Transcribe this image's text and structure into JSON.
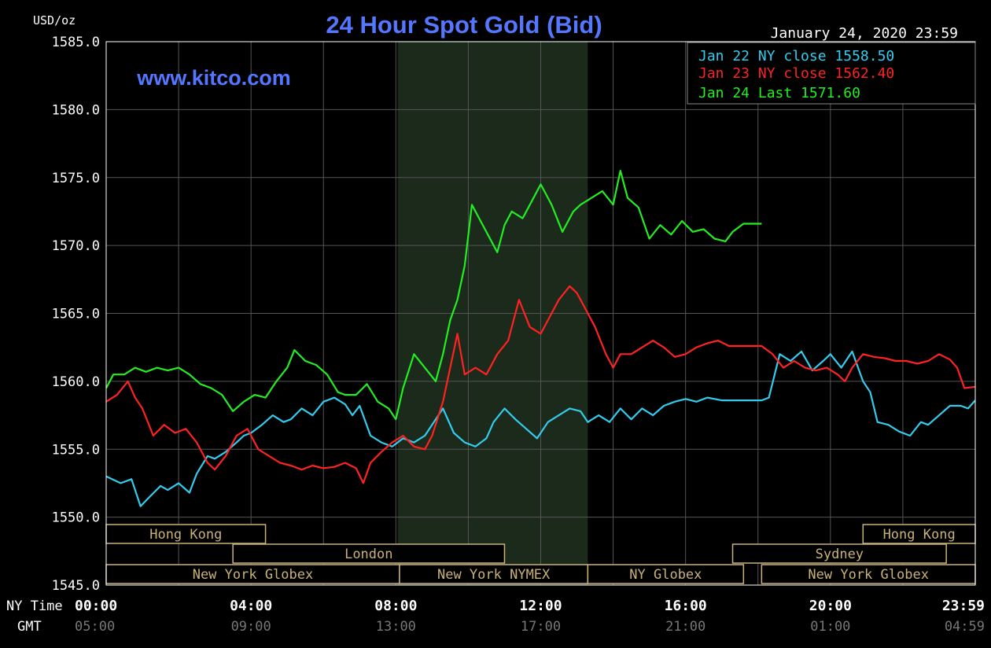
{
  "chart_data": {
    "type": "line",
    "title": "24 Hour Spot Gold (Bid)",
    "site": "www.kitco.com",
    "timestamp": "January 24, 2020 23:59",
    "ylabel": "USD/oz",
    "ylim": [
      1545,
      1585
    ],
    "yticks": [
      "1585.0",
      "1580.0",
      "1575.0",
      "1570.0",
      "1565.0",
      "1560.0",
      "1555.0",
      "1550.0",
      "1545.0"
    ],
    "xlim": [
      0,
      24
    ],
    "x_row_labels": [
      "NY Time",
      "GMT"
    ],
    "ny_ticks": [
      "00:00",
      "04:00",
      "08:00",
      "12:00",
      "16:00",
      "20:00",
      "23:59"
    ],
    "gmt_ticks": [
      "05:00",
      "09:00",
      "13:00",
      "17:00",
      "21:00",
      "01:00",
      "04:59"
    ],
    "shaded_region": [
      8.05,
      13.3
    ],
    "grid": true,
    "legend_position": "top-right",
    "series": [
      {
        "name": "Jan 22 NY close 1558.50",
        "color": "#33ccee",
        "x": [
          0,
          0.4,
          0.7,
          0.95,
          1.2,
          1.5,
          1.7,
          2.0,
          2.3,
          2.5,
          2.8,
          3.0,
          3.3,
          3.6,
          3.8,
          4.0,
          4.3,
          4.6,
          4.9,
          5.1,
          5.4,
          5.7,
          6.0,
          6.3,
          6.6,
          6.8,
          7.0,
          7.3,
          7.6,
          7.9,
          8.2,
          8.5,
          8.8,
          9.1,
          9.3,
          9.6,
          9.9,
          10.2,
          10.5,
          10.7,
          11.0,
          11.3,
          11.6,
          11.9,
          12.2,
          12.5,
          12.8,
          13.1,
          13.3,
          13.6,
          13.9,
          14.2,
          14.5,
          14.8,
          15.1,
          15.4,
          15.7,
          16.0,
          16.3,
          16.6,
          17.0,
          17.4,
          17.8,
          18.1,
          18.3,
          18.6,
          18.9,
          19.2,
          19.5,
          19.8,
          20.0,
          20.3,
          20.6,
          20.9,
          21.1,
          21.3,
          21.6,
          21.9,
          22.2,
          22.5,
          22.7,
          23.0,
          23.3,
          23.6,
          23.8,
          24.0
        ],
        "values": [
          1553.0,
          1552.5,
          1552.8,
          1550.8,
          1551.5,
          1552.3,
          1552.0,
          1552.5,
          1551.8,
          1553.2,
          1554.5,
          1554.3,
          1554.8,
          1555.5,
          1556.0,
          1556.2,
          1556.8,
          1557.5,
          1557.0,
          1557.2,
          1558.0,
          1557.5,
          1558.5,
          1558.8,
          1558.3,
          1557.5,
          1558.2,
          1556.0,
          1555.5,
          1555.2,
          1555.8,
          1555.5,
          1556.0,
          1557.2,
          1558.0,
          1556.2,
          1555.5,
          1555.2,
          1555.8,
          1557.0,
          1558.0,
          1557.2,
          1556.5,
          1555.8,
          1557.0,
          1557.5,
          1558.0,
          1557.8,
          1557.0,
          1557.5,
          1557.0,
          1558.0,
          1557.2,
          1558.0,
          1557.5,
          1558.2,
          1558.5,
          1558.7,
          1558.5,
          1558.8,
          1558.6,
          1558.6,
          1558.6,
          1558.6,
          1558.8,
          1562.0,
          1561.5,
          1562.2,
          1560.8,
          1561.5,
          1562.0,
          1561.0,
          1562.2,
          1560.0,
          1559.2,
          1557.0,
          1556.8,
          1556.3,
          1556.0,
          1557.0,
          1556.8,
          1557.5,
          1558.2,
          1558.2,
          1558.0,
          1558.6
        ]
      },
      {
        "name": "Jan 23 NY close 1562.40",
        "color": "#ff2222",
        "x": [
          0,
          0.3,
          0.6,
          0.8,
          1.0,
          1.3,
          1.6,
          1.9,
          2.2,
          2.5,
          2.8,
          3.0,
          3.3,
          3.6,
          3.9,
          4.2,
          4.5,
          4.8,
          5.1,
          5.4,
          5.7,
          6.0,
          6.3,
          6.6,
          6.9,
          7.1,
          7.3,
          7.6,
          7.9,
          8.2,
          8.5,
          8.8,
          9.0,
          9.3,
          9.5,
          9.7,
          9.9,
          10.2,
          10.5,
          10.8,
          11.1,
          11.4,
          11.7,
          12.0,
          12.2,
          12.5,
          12.8,
          13.0,
          13.3,
          13.5,
          13.8,
          14.0,
          14.2,
          14.5,
          14.8,
          15.1,
          15.4,
          15.7,
          16.0,
          16.3,
          16.6,
          16.9,
          17.2,
          17.5,
          17.8,
          18.1,
          18.4,
          18.7,
          19.0,
          19.3,
          19.6,
          19.9,
          20.2,
          20.4,
          20.6,
          20.9,
          21.2,
          21.5,
          21.8,
          22.1,
          22.4,
          22.7,
          23.0,
          23.3,
          23.5,
          23.7,
          24.0
        ],
        "values": [
          1558.5,
          1559.0,
          1560.0,
          1558.8,
          1558.0,
          1556.0,
          1556.8,
          1556.2,
          1556.5,
          1555.5,
          1554.0,
          1553.5,
          1554.5,
          1556.0,
          1556.5,
          1555.0,
          1554.5,
          1554.0,
          1553.8,
          1553.5,
          1553.8,
          1553.6,
          1553.7,
          1554.0,
          1553.6,
          1552.5,
          1554.0,
          1554.8,
          1555.5,
          1556.0,
          1555.2,
          1555.0,
          1556.0,
          1558.5,
          1561.0,
          1563.5,
          1560.5,
          1561.0,
          1560.5,
          1562.0,
          1563.0,
          1566.0,
          1564.0,
          1563.5,
          1564.5,
          1566.0,
          1567.0,
          1566.5,
          1565.0,
          1564.0,
          1562.0,
          1561.0,
          1562.0,
          1562.0,
          1562.5,
          1563.0,
          1562.5,
          1561.8,
          1562.0,
          1562.5,
          1562.8,
          1563.0,
          1562.6,
          1562.6,
          1562.6,
          1562.6,
          1562.0,
          1561.0,
          1561.5,
          1561.0,
          1560.8,
          1561.0,
          1560.5,
          1560.0,
          1561.0,
          1562.0,
          1561.8,
          1561.7,
          1561.5,
          1561.5,
          1561.3,
          1561.5,
          1562.0,
          1561.6,
          1561.0,
          1559.5,
          1559.6
        ]
      },
      {
        "name": "Jan 24 Last 1571.60",
        "color": "#22ee22",
        "x": [
          0,
          0.2,
          0.5,
          0.8,
          1.1,
          1.4,
          1.7,
          2.0,
          2.3,
          2.6,
          2.9,
          3.2,
          3.5,
          3.8,
          4.1,
          4.4,
          4.7,
          5.0,
          5.2,
          5.5,
          5.8,
          6.1,
          6.4,
          6.6,
          6.9,
          7.2,
          7.5,
          7.8,
          8.0,
          8.2,
          8.5,
          8.8,
          9.1,
          9.3,
          9.5,
          9.7,
          9.9,
          10.1,
          10.3,
          10.5,
          10.8,
          11.0,
          11.2,
          11.5,
          11.8,
          12.0,
          12.3,
          12.6,
          12.9,
          13.1,
          13.4,
          13.7,
          14.0,
          14.2,
          14.4,
          14.7,
          15.0,
          15.3,
          15.6,
          15.9,
          16.2,
          16.5,
          16.8,
          17.1,
          17.3,
          17.6,
          17.9,
          18.1
        ],
        "values": [
          1559.5,
          1560.5,
          1560.5,
          1561.0,
          1560.7,
          1561.0,
          1560.8,
          1561.0,
          1560.5,
          1559.8,
          1559.5,
          1559.0,
          1557.8,
          1558.5,
          1559.0,
          1558.8,
          1560.0,
          1561.0,
          1562.3,
          1561.5,
          1561.2,
          1560.5,
          1559.2,
          1559.0,
          1559.0,
          1559.8,
          1558.5,
          1558.0,
          1557.2,
          1559.5,
          1562.0,
          1561.0,
          1560.0,
          1562.0,
          1564.5,
          1566.0,
          1568.5,
          1573.0,
          1572.0,
          1571.0,
          1569.5,
          1571.5,
          1572.5,
          1572.0,
          1573.5,
          1574.5,
          1573.0,
          1571.0,
          1572.5,
          1573.0,
          1573.5,
          1574.0,
          1573.0,
          1575.5,
          1573.5,
          1572.8,
          1570.5,
          1571.5,
          1570.8,
          1571.8,
          1571.0,
          1571.2,
          1570.5,
          1570.3,
          1571.0,
          1571.6,
          1571.6,
          1571.6
        ]
      }
    ],
    "sessions": [
      {
        "label": "Hong Kong",
        "start": 0,
        "end": 4.4,
        "row": 0
      },
      {
        "label": "Hong Kong",
        "start": 20.9,
        "end": 24,
        "row": 0
      },
      {
        "label": "London",
        "start": 3.5,
        "end": 11.0,
        "row": 1
      },
      {
        "label": "Sydney",
        "start": 17.3,
        "end": 23.2,
        "row": 1
      },
      {
        "label": "New York Globex",
        "start": 0,
        "end": 8.1,
        "row": 2
      },
      {
        "label": "New York NYMEX",
        "start": 8.1,
        "end": 13.3,
        "row": 2
      },
      {
        "label": "NY Globex",
        "start": 13.3,
        "end": 17.6,
        "row": 2
      },
      {
        "label": "New York Globex",
        "start": 18.1,
        "end": 24,
        "row": 2
      }
    ]
  }
}
